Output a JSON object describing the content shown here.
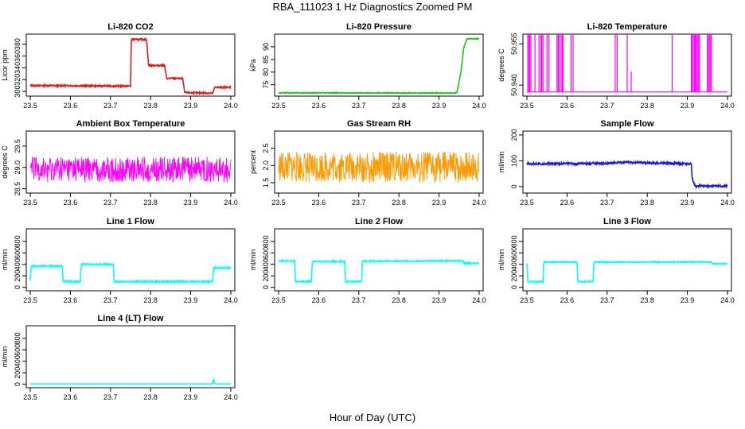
{
  "figure": {
    "title": "RBA_111023  1 Hz Diagnostics Zoomed PM",
    "xlabel": "Hour of Day (UTC)"
  },
  "chart_data": [
    {
      "type": "line",
      "title": "Li-820 CO2",
      "ylabel": "Licor ppm",
      "color": "#e01b1b",
      "xlim": [
        23.49,
        24.01
      ],
      "ylim": [
        292,
        397
      ],
      "xticks": [
        23.5,
        23.6,
        23.7,
        23.8,
        23.9,
        24.0
      ],
      "xtick_labels": [
        "23.5",
        "23.6",
        "23.7",
        "23.8",
        "23.9",
        "24.0"
      ],
      "yticks": [
        300,
        320,
        340,
        360,
        380
      ],
      "ytick_labels": [
        "300",
        "320",
        "340",
        "360",
        "380"
      ],
      "noise": 1.2,
      "x": [
        23.5,
        23.75,
        23.752,
        23.79,
        23.795,
        23.835,
        23.84,
        23.88,
        23.885,
        23.955,
        23.96,
        24.0
      ],
      "y": [
        310,
        309,
        388,
        388,
        344,
        344,
        322,
        322,
        298,
        297,
        307,
        307
      ]
    },
    {
      "type": "line",
      "title": "Li-820 Pressure",
      "ylabel": "kPa",
      "color": "#17c717",
      "xlim": [
        23.49,
        24.01
      ],
      "ylim": [
        70.5,
        95
      ],
      "xticks": [
        23.5,
        23.6,
        23.7,
        23.8,
        23.9,
        24.0
      ],
      "xtick_labels": [
        "23.5",
        "23.6",
        "23.7",
        "23.8",
        "23.9",
        "24.0"
      ],
      "yticks": [
        75,
        80,
        85,
        90
      ],
      "ytick_labels": [
        "75",
        "80",
        "85",
        "90"
      ],
      "noise": 0.15,
      "x": [
        23.5,
        23.94,
        23.945,
        23.955,
        23.962,
        23.97,
        24.0
      ],
      "y": [
        71.8,
        71.7,
        72.0,
        80.5,
        90.0,
        93.2,
        93.2
      ]
    },
    {
      "type": "spikes",
      "title": "Li-820 Temperature",
      "ylabel": "degrees C",
      "color": "#ff00ff",
      "xlim": [
        23.49,
        24.01
      ],
      "ylim": [
        50.936,
        50.9585
      ],
      "xticks": [
        23.5,
        23.6,
        23.7,
        23.8,
        23.9,
        24.0
      ],
      "xtick_labels": [
        "23.5",
        "23.6",
        "23.7",
        "23.8",
        "23.9",
        "24.0"
      ],
      "yticks": [
        50.94,
        50.955
      ],
      "ytick_labels": [
        "50.940",
        "50.955"
      ],
      "baseline": 50.9375,
      "high": 50.9585,
      "spike_x": [
        23.502,
        23.505,
        23.507,
        23.51,
        23.52,
        23.53,
        23.535,
        23.537,
        23.54,
        23.55,
        23.555,
        23.575,
        23.578,
        23.58,
        23.585,
        23.588,
        23.59,
        23.61,
        23.615,
        23.72,
        23.725,
        23.75,
        23.862,
        23.91,
        23.912,
        23.915,
        23.918,
        23.92,
        23.922,
        23.925,
        23.928,
        23.93,
        23.95,
        23.952,
        23.955,
        23.958,
        23.96
      ],
      "mid_spike_x": [
        23.76
      ],
      "mid_spike_y": 50.945
    },
    {
      "type": "line",
      "title": "Ambient Box Temperature",
      "ylabel": "degrees C",
      "color": "#ff00ff",
      "xlim": [
        23.49,
        24.01
      ],
      "ylim": [
        28.4,
        29.85
      ],
      "xticks": [
        23.5,
        23.6,
        23.7,
        23.8,
        23.9,
        24.0
      ],
      "xtick_labels": [
        "23.5",
        "23.6",
        "23.7",
        "23.8",
        "23.9",
        "24.0"
      ],
      "yticks": [
        28.5,
        29.0,
        29.5
      ],
      "ytick_labels": [
        "28.5",
        "29.0",
        "29.5"
      ],
      "noise": 0.3,
      "x": [
        23.5,
        24.0
      ],
      "y": [
        28.95,
        28.95
      ]
    },
    {
      "type": "line",
      "title": "Gas Stream RH",
      "ylabel": "percent",
      "color": "#ff9900",
      "xlim": [
        23.49,
        24.01
      ],
      "ylim": [
        1.2,
        3.0
      ],
      "xticks": [
        23.5,
        23.6,
        23.7,
        23.8,
        23.9,
        24.0
      ],
      "xtick_labels": [
        "23.5",
        "23.6",
        "23.7",
        "23.8",
        "23.9",
        "24.0"
      ],
      "yticks": [
        1.5,
        2.0,
        2.5
      ],
      "ytick_labels": [
        "1.5",
        "2.0",
        "2.5"
      ],
      "noise": 0.45,
      "x": [
        23.5,
        24.0
      ],
      "y": [
        1.95,
        1.95
      ]
    },
    {
      "type": "line",
      "title": "Sample Flow",
      "ylabel": "ml/min",
      "color": "#1a1ae0",
      "xlim": [
        23.49,
        24.01
      ],
      "ylim": [
        -25,
        215
      ],
      "xticks": [
        23.5,
        23.6,
        23.7,
        23.8,
        23.9,
        24.0
      ],
      "xtick_labels": [
        "23.5",
        "23.6",
        "23.7",
        "23.8",
        "23.9",
        "24.0"
      ],
      "yticks": [
        0,
        100,
        200
      ],
      "ytick_labels": [
        "0",
        "100",
        "200"
      ],
      "noise": 4,
      "x": [
        23.5,
        23.7,
        23.75,
        23.8,
        23.91,
        23.912,
        23.92,
        24.0
      ],
      "y": [
        88,
        90,
        95,
        92,
        88,
        30,
        2,
        2
      ]
    },
    {
      "type": "line",
      "title": "Line 1 Flow",
      "ylabel": "ml/min",
      "color": "#00ffff",
      "xlim": [
        23.49,
        24.01
      ],
      "ylim": [
        -60,
        1020
      ],
      "xticks": [
        23.5,
        23.6,
        23.7,
        23.8,
        23.9,
        24.0
      ],
      "xtick_labels": [
        "23.5",
        "23.6",
        "23.7",
        "23.8",
        "23.9",
        "24.0"
      ],
      "yticks": [
        0,
        200,
        400,
        600,
        800
      ],
      "ytick_labels": [
        "0",
        "200",
        "400",
        "600",
        "800"
      ],
      "noise": 12,
      "x": [
        23.5,
        23.502,
        23.58,
        23.582,
        23.625,
        23.627,
        23.707,
        23.709,
        23.955,
        23.957,
        24.0
      ],
      "y": [
        120,
        370,
        370,
        100,
        100,
        400,
        400,
        100,
        100,
        340,
        340
      ]
    },
    {
      "type": "line",
      "title": "Line 2 Flow",
      "ylabel": "ml/min",
      "color": "#00ffff",
      "xlim": [
        23.49,
        24.01
      ],
      "ylim": [
        -60,
        1020
      ],
      "xticks": [
        23.5,
        23.6,
        23.7,
        23.8,
        23.9,
        24.0
      ],
      "xtick_labels": [
        "23.5",
        "23.6",
        "23.7",
        "23.8",
        "23.9",
        "24.0"
      ],
      "yticks": [
        0,
        200,
        400,
        600,
        800
      ],
      "ytick_labels": [
        "0",
        "200",
        "400",
        "600",
        "800"
      ],
      "noise": 10,
      "x": [
        23.5,
        23.54,
        23.542,
        23.582,
        23.584,
        23.665,
        23.667,
        23.707,
        23.709,
        23.96,
        23.962,
        24.0
      ],
      "y": [
        460,
        460,
        100,
        100,
        450,
        450,
        100,
        100,
        455,
        460,
        420,
        420
      ]
    },
    {
      "type": "line",
      "title": "Line 3 Flow",
      "ylabel": "ml/min",
      "color": "#00ffff",
      "xlim": [
        23.49,
        24.01
      ],
      "ylim": [
        -60,
        1020
      ],
      "xticks": [
        23.5,
        23.6,
        23.7,
        23.8,
        23.9,
        24.0
      ],
      "xtick_labels": [
        "23.5",
        "23.6",
        "23.7",
        "23.8",
        "23.9",
        "24.0"
      ],
      "yticks": [
        0,
        200,
        400,
        600,
        800
      ],
      "ytick_labels": [
        "0",
        "200",
        "400",
        "600",
        "800"
      ],
      "noise": 8,
      "x": [
        23.5,
        23.502,
        23.54,
        23.542,
        23.625,
        23.627,
        23.665,
        23.667,
        23.96,
        23.962,
        24.0
      ],
      "y": [
        420,
        100,
        100,
        440,
        440,
        100,
        100,
        440,
        440,
        410,
        410
      ]
    },
    {
      "type": "line",
      "title": "Line 4 (LT) Flow",
      "ylabel": "ml/min",
      "color": "#00ffff",
      "xlim": [
        23.49,
        24.01
      ],
      "ylim": [
        -60,
        1020
      ],
      "xticks": [
        23.5,
        23.6,
        23.7,
        23.8,
        23.9,
        24.0
      ],
      "xtick_labels": [
        "23.5",
        "23.6",
        "23.7",
        "23.8",
        "23.9",
        "24.0"
      ],
      "yticks": [
        0,
        200,
        400,
        600,
        800
      ],
      "ytick_labels": [
        "0",
        "200",
        "400",
        "600",
        "800"
      ],
      "noise": 2,
      "x": [
        23.5,
        23.955,
        23.957,
        23.959,
        23.961,
        24.0
      ],
      "y": [
        5,
        5,
        100,
        30,
        5,
        5
      ]
    }
  ]
}
